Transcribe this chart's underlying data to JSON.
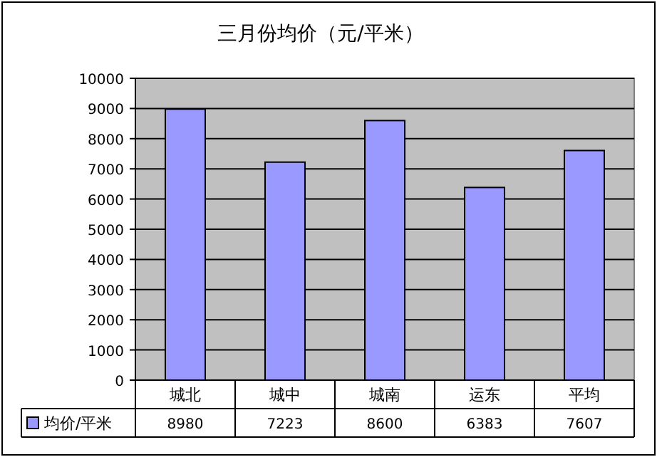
{
  "chart_data": {
    "type": "bar",
    "title": "三月份均价（元/平米）",
    "categories": [
      "城北",
      "城中",
      "城南",
      "运东",
      "平均"
    ],
    "series": [
      {
        "name": "均价/平米",
        "color": "#9999ff",
        "values": [
          8980,
          7223,
          8600,
          6383,
          7607
        ]
      }
    ],
    "ylim": [
      0,
      10000
    ],
    "yticks": [
      0,
      1000,
      2000,
      3000,
      4000,
      5000,
      6000,
      7000,
      8000,
      9000,
      10000
    ],
    "grid": "y",
    "data_labels": true,
    "legend": "bottom"
  }
}
